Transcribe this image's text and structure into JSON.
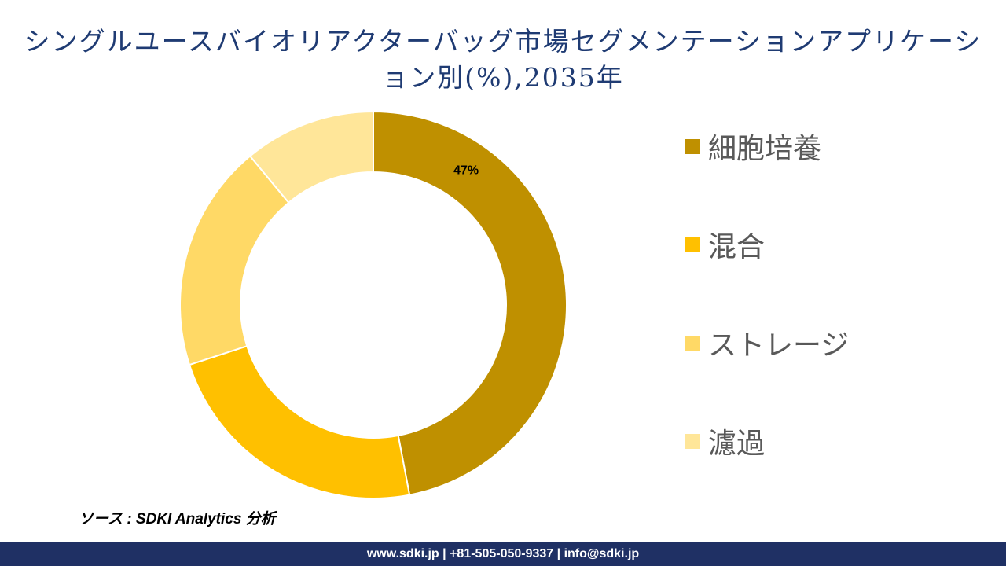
{
  "title": "シングルユースバイオリアクターバッグ市場セグメンテーションアプリケーション別(%),2035年",
  "chart_data": {
    "type": "donut",
    "title": "シングルユースバイオリアクターバッグ市場セグメンテーションアプリケーション別(%),2035年",
    "categories": [
      "細胞培養",
      "混合",
      "ストレージ",
      "濾過"
    ],
    "values": [
      47,
      23,
      19,
      11
    ],
    "colors": [
      "#bf9000",
      "#ffc000",
      "#ffd966",
      "#ffe699"
    ],
    "data_labels": [
      "47%",
      "",
      "",
      ""
    ],
    "legend_position": "right"
  },
  "source": "ソース : SDKI Analytics 分析",
  "footer": {
    "website": "www.sdki.jp",
    "separator": " | ",
    "phone": "+81-505-050-9337",
    "email": "info@sdki.jp"
  }
}
